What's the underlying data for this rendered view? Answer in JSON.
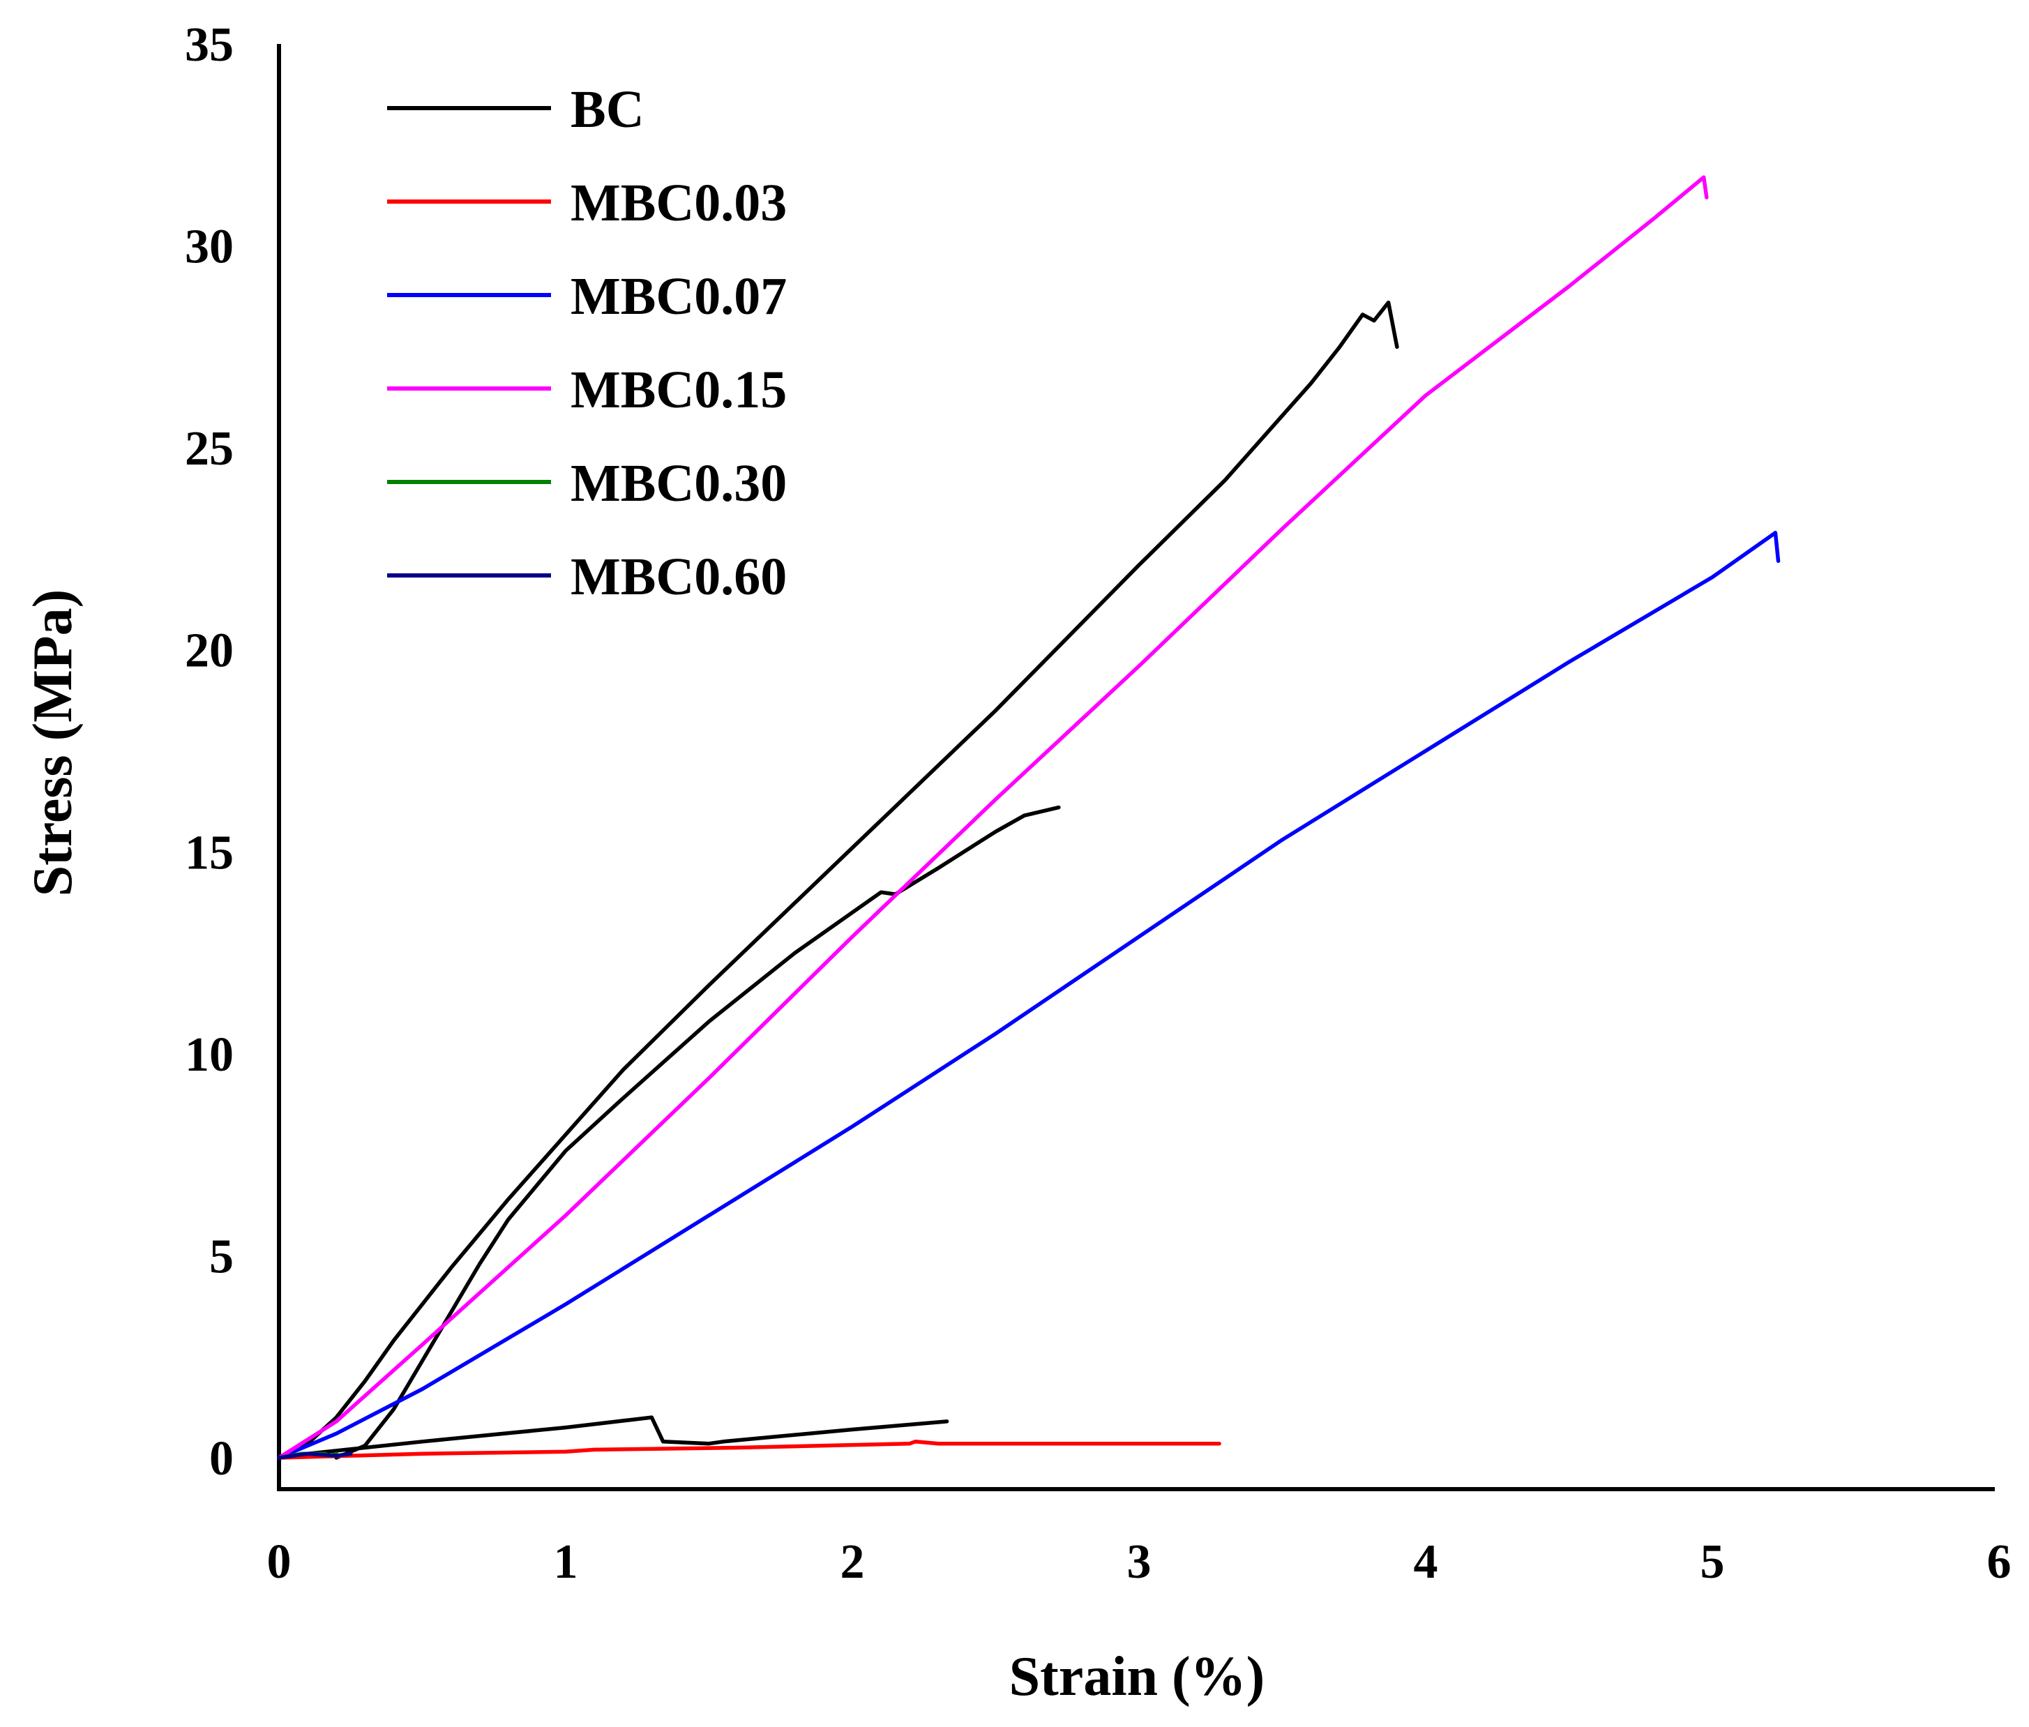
{
  "chart_data": {
    "type": "line",
    "xlabel": "Strain (%)",
    "ylabel": "Stress (MPa)",
    "xlim": [
      0,
      6
    ],
    "ylim": [
      0,
      35
    ],
    "xticks": [
      "0",
      "1",
      "2",
      "3",
      "4",
      "5",
      "6"
    ],
    "yticks": [
      "0",
      "5",
      "10",
      "15",
      "20",
      "25",
      "30",
      "35"
    ],
    "grid": false,
    "legend_position": "top-left",
    "series": [
      {
        "name": "BC",
        "color": "#000000",
        "points": [
          [
            0,
            0
          ],
          [
            0.1,
            0.35
          ],
          [
            0.2,
            1.0
          ],
          [
            0.3,
            1.9
          ],
          [
            0.4,
            2.9
          ],
          [
            0.5,
            3.8
          ],
          [
            0.6,
            4.7
          ],
          [
            0.8,
            6.4
          ],
          [
            1.0,
            8.0
          ],
          [
            1.2,
            9.6
          ],
          [
            1.5,
            11.7
          ],
          [
            2.0,
            15.1
          ],
          [
            2.5,
            18.5
          ],
          [
            3.0,
            22.1
          ],
          [
            3.3,
            24.2
          ],
          [
            3.6,
            26.6
          ],
          [
            3.7,
            27.5
          ],
          [
            3.78,
            28.3
          ],
          [
            3.82,
            28.15
          ],
          [
            3.87,
            28.6
          ],
          [
            3.9,
            27.5
          ]
        ]
      },
      {
        "name": "MBC0.03",
        "color": "#ff0000",
        "points": [
          [
            0,
            0
          ],
          [
            0.5,
            0.1
          ],
          [
            1.0,
            0.15
          ],
          [
            1.1,
            0.2
          ],
          [
            1.6,
            0.25
          ],
          [
            2.2,
            0.35
          ],
          [
            2.22,
            0.4
          ],
          [
            2.3,
            0.35
          ],
          [
            2.8,
            0.35
          ],
          [
            3.28,
            0.35
          ]
        ]
      },
      {
        "name": "MBC0.07",
        "color": "#0000ff",
        "points": [
          [
            0,
            0
          ],
          [
            0.2,
            0.6
          ],
          [
            0.5,
            1.7
          ],
          [
            1.0,
            3.8
          ],
          [
            1.5,
            6.0
          ],
          [
            2.0,
            8.2
          ],
          [
            2.5,
            10.5
          ],
          [
            3.0,
            12.9
          ],
          [
            3.5,
            15.3
          ],
          [
            4.0,
            17.5
          ],
          [
            4.5,
            19.7
          ],
          [
            5.0,
            21.8
          ],
          [
            5.2,
            22.8
          ],
          [
            5.22,
            22.9
          ],
          [
            5.23,
            22.2
          ]
        ]
      },
      {
        "name": "MBC0.15",
        "color": "#ff00ff",
        "points": [
          [
            0,
            0
          ],
          [
            0.2,
            0.9
          ],
          [
            0.5,
            2.8
          ],
          [
            1.0,
            6.0
          ],
          [
            1.5,
            9.4
          ],
          [
            2.0,
            12.9
          ],
          [
            2.5,
            16.3
          ],
          [
            3.0,
            19.6
          ],
          [
            3.5,
            23.0
          ],
          [
            4.0,
            26.3
          ],
          [
            4.5,
            29.0
          ],
          [
            4.8,
            30.7
          ],
          [
            4.97,
            31.7
          ],
          [
            4.98,
            31.2
          ]
        ]
      },
      {
        "name": "MBC0.30",
        "color": "#008000",
        "points": [
          [
            0,
            0
          ],
          [
            0.08,
            0.1
          ],
          [
            0.12,
            0.1
          ],
          [
            0.16,
            0.1
          ],
          [
            0.18,
            0.05
          ],
          [
            0.2,
            0.1
          ]
        ]
      },
      {
        "name": "MBC0.60",
        "color": "#00008b",
        "points": [
          [
            0,
            0
          ],
          [
            0.1,
            0.1
          ],
          [
            0.2,
            0.05
          ],
          [
            0.25,
            0.1
          ]
        ]
      }
    ],
    "unlabeled_series": [
      {
        "color": "#000000",
        "points": [
          [
            0.2,
            0
          ],
          [
            0.3,
            0.3
          ],
          [
            0.4,
            1.2
          ],
          [
            0.5,
            2.4
          ],
          [
            0.6,
            3.6
          ],
          [
            0.7,
            4.8
          ],
          [
            0.8,
            5.9
          ],
          [
            1.0,
            7.6
          ],
          [
            1.2,
            8.9
          ],
          [
            1.5,
            10.8
          ],
          [
            1.8,
            12.5
          ],
          [
            2.1,
            14.0
          ],
          [
            2.15,
            13.95
          ],
          [
            2.3,
            14.6
          ],
          [
            2.5,
            15.5
          ],
          [
            2.6,
            15.9
          ],
          [
            2.72,
            16.1
          ]
        ]
      },
      {
        "color": "#000000",
        "points": [
          [
            0.1,
            0.1
          ],
          [
            0.5,
            0.4
          ],
          [
            1.0,
            0.75
          ],
          [
            1.3,
            1.0
          ],
          [
            1.34,
            0.4
          ],
          [
            1.5,
            0.35
          ],
          [
            1.55,
            0.4
          ],
          [
            2.0,
            0.7
          ],
          [
            2.33,
            0.9
          ]
        ]
      }
    ]
  }
}
